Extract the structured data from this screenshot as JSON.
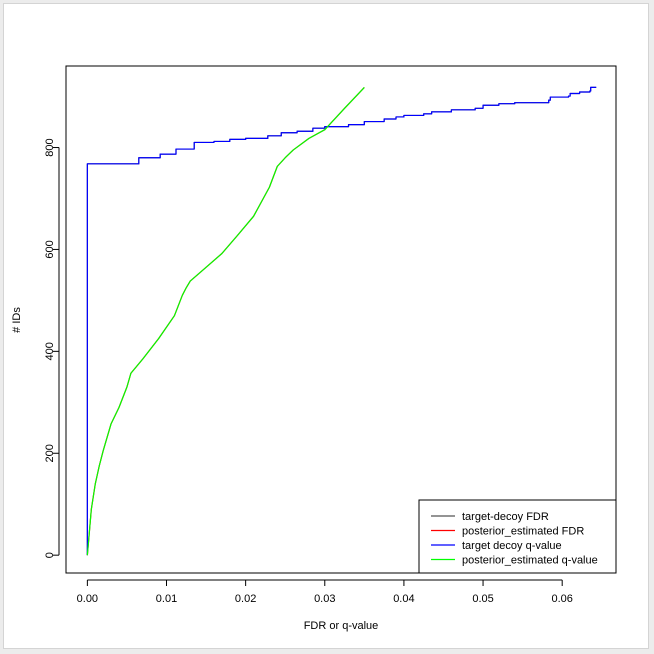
{
  "chart_data": {
    "type": "line",
    "title": "",
    "xlabel": "FDR or q-value",
    "ylabel": "# IDs",
    "xlim": [
      -0.0027,
      0.0668
    ],
    "ylim": [
      -35,
      960
    ],
    "xticks": [
      "0.00",
      "0.01",
      "0.02",
      "0.03",
      "0.04",
      "0.05",
      "0.06"
    ],
    "xtick_values": [
      0.0,
      0.01,
      0.02,
      0.03,
      0.04,
      0.05,
      0.06
    ],
    "yticks": [
      "0",
      "200",
      "400",
      "600",
      "800"
    ],
    "ytick_values": [
      0,
      200,
      400,
      600,
      800
    ],
    "grid": false,
    "legend_position": "bottom-right",
    "series": [
      {
        "name": "target-decoy FDR",
        "color": "#555555",
        "step": true,
        "points": [
          [
            0,
            0
          ],
          [
            0,
            768
          ],
          [
            0.0065,
            770
          ],
          [
            0.0065,
            780
          ],
          [
            0.0092,
            781
          ],
          [
            0.0092,
            787
          ],
          [
            0.0112,
            788
          ],
          [
            0.0112,
            797
          ],
          [
            0.0135,
            798
          ],
          [
            0.0135,
            810
          ],
          [
            0.016,
            812
          ],
          [
            0.018,
            816
          ],
          [
            0.02,
            818
          ],
          [
            0.0228,
            823
          ],
          [
            0.0245,
            829
          ],
          [
            0.0265,
            832
          ],
          [
            0.0285,
            838
          ],
          [
            0.03,
            841
          ],
          [
            0.033,
            845
          ],
          [
            0.035,
            851
          ],
          [
            0.0375,
            856
          ],
          [
            0.039,
            860
          ],
          [
            0.04,
            863
          ],
          [
            0.0425,
            866
          ],
          [
            0.0435,
            870
          ],
          [
            0.046,
            874
          ],
          [
            0.049,
            877
          ],
          [
            0.05,
            883
          ],
          [
            0.052,
            886
          ],
          [
            0.054,
            888
          ],
          [
            0.0583,
            893
          ],
          [
            0.0585,
            899
          ],
          [
            0.0608,
            901
          ],
          [
            0.061,
            906
          ],
          [
            0.0622,
            909
          ],
          [
            0.0635,
            911
          ],
          [
            0.0636,
            918
          ],
          [
            0.0643,
            918
          ]
        ]
      },
      {
        "name": "posterior_estimated FDR",
        "color": "#ff0000",
        "step": false,
        "points": [
          [
            0,
            0
          ],
          [
            0.0005,
            90
          ],
          [
            0.001,
            140
          ],
          [
            0.0015,
            175
          ],
          [
            0.002,
            205
          ],
          [
            0.003,
            258
          ],
          [
            0.004,
            290
          ],
          [
            0.005,
            330
          ],
          [
            0.0055,
            357
          ],
          [
            0.007,
            385
          ],
          [
            0.009,
            425
          ],
          [
            0.011,
            470
          ],
          [
            0.012,
            510
          ],
          [
            0.0125,
            525
          ],
          [
            0.013,
            538
          ],
          [
            0.015,
            565
          ],
          [
            0.017,
            592
          ],
          [
            0.019,
            628
          ],
          [
            0.021,
            665
          ],
          [
            0.023,
            722
          ],
          [
            0.024,
            763
          ],
          [
            0.025,
            780
          ],
          [
            0.026,
            795
          ],
          [
            0.028,
            818
          ],
          [
            0.03,
            835
          ],
          [
            0.0325,
            877
          ],
          [
            0.035,
            918
          ]
        ]
      },
      {
        "name": "target decoy q-value",
        "color": "#0000ff",
        "step": true,
        "points": [
          [
            0,
            0
          ],
          [
            0,
            768
          ],
          [
            0.0065,
            770
          ],
          [
            0.0065,
            780
          ],
          [
            0.0092,
            781
          ],
          [
            0.0092,
            787
          ],
          [
            0.0112,
            788
          ],
          [
            0.0112,
            797
          ],
          [
            0.0135,
            798
          ],
          [
            0.0135,
            810
          ],
          [
            0.016,
            812
          ],
          [
            0.018,
            816
          ],
          [
            0.02,
            818
          ],
          [
            0.0228,
            823
          ],
          [
            0.0245,
            829
          ],
          [
            0.0265,
            832
          ],
          [
            0.0285,
            838
          ],
          [
            0.03,
            841
          ],
          [
            0.033,
            845
          ],
          [
            0.035,
            851
          ],
          [
            0.0375,
            856
          ],
          [
            0.039,
            860
          ],
          [
            0.04,
            863
          ],
          [
            0.0425,
            866
          ],
          [
            0.0435,
            870
          ],
          [
            0.046,
            874
          ],
          [
            0.049,
            877
          ],
          [
            0.05,
            883
          ],
          [
            0.052,
            886
          ],
          [
            0.054,
            888
          ],
          [
            0.0583,
            893
          ],
          [
            0.0585,
            899
          ],
          [
            0.0608,
            901
          ],
          [
            0.061,
            906
          ],
          [
            0.0622,
            909
          ],
          [
            0.0635,
            911
          ],
          [
            0.0636,
            918
          ],
          [
            0.0643,
            918
          ]
        ]
      },
      {
        "name": "posterior_estimated q-value",
        "color": "#00ff00",
        "step": false,
        "points": [
          [
            0,
            0
          ],
          [
            0.0005,
            90
          ],
          [
            0.001,
            140
          ],
          [
            0.0015,
            175
          ],
          [
            0.002,
            205
          ],
          [
            0.003,
            258
          ],
          [
            0.004,
            290
          ],
          [
            0.005,
            330
          ],
          [
            0.0055,
            357
          ],
          [
            0.007,
            385
          ],
          [
            0.009,
            425
          ],
          [
            0.011,
            470
          ],
          [
            0.012,
            510
          ],
          [
            0.0125,
            525
          ],
          [
            0.013,
            538
          ],
          [
            0.015,
            565
          ],
          [
            0.017,
            592
          ],
          [
            0.019,
            628
          ],
          [
            0.021,
            665
          ],
          [
            0.023,
            722
          ],
          [
            0.024,
            763
          ],
          [
            0.025,
            780
          ],
          [
            0.026,
            795
          ],
          [
            0.028,
            818
          ],
          [
            0.03,
            835
          ],
          [
            0.0325,
            877
          ],
          [
            0.035,
            918
          ]
        ]
      }
    ]
  }
}
